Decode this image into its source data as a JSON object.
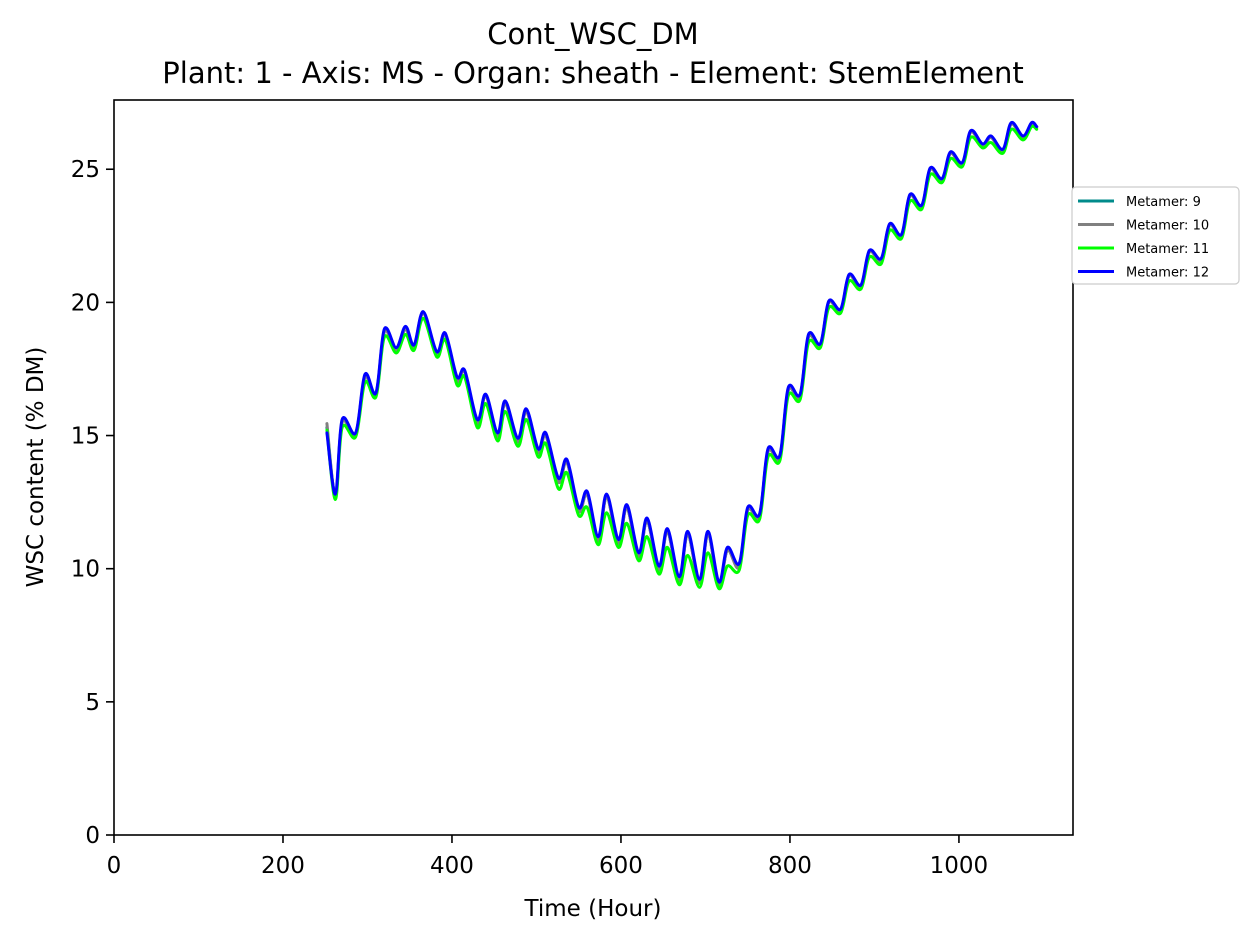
{
  "chart_data": {
    "type": "line",
    "title": "Cont_WSC_DM",
    "subtitle": "Plant: 1 - Axis: MS - Organ: sheath - Element: StemElement",
    "xlabel": "Time (Hour)",
    "ylabel": "WSC content (% DM)",
    "xlim": [
      0,
      1135
    ],
    "ylim": [
      0,
      27.6
    ],
    "xticks": [
      0,
      200,
      400,
      600,
      800,
      1000
    ],
    "yticks": [
      0,
      5,
      10,
      15,
      20,
      25
    ],
    "grid": false,
    "legend_placement": "outside-right-top",
    "series": [
      {
        "name": "Metamer: 9",
        "color": "#008b8b",
        "offset": 0.0,
        "x": [
          252,
          262,
          270,
          286,
          297,
          310,
          320,
          334,
          345,
          355,
          366,
          382,
          392,
          406,
          415,
          430,
          440,
          454,
          463,
          478,
          488,
          502,
          511,
          526,
          536,
          550,
          560,
          573,
          583,
          597,
          607,
          621,
          631,
          645,
          655,
          669,
          679,
          693,
          703,
          716,
          726,
          740,
          750,
          764,
          774,
          788,
          798,
          812,
          822,
          836,
          846,
          860,
          870,
          884,
          894,
          908,
          918,
          932,
          942,
          956,
          966,
          980,
          990,
          1004,
          1014,
          1028,
          1038,
          1052,
          1062,
          1076,
          1086,
          1092
        ],
        "y": [
          15.3,
          12.75,
          15.5,
          15.05,
          17.2,
          16.55,
          18.9,
          18.25,
          19.0,
          18.35,
          19.6,
          18.1,
          18.8,
          17.1,
          17.4,
          15.5,
          16.5,
          15.0,
          16.2,
          14.8,
          15.9,
          14.4,
          15.0,
          13.3,
          14.0,
          12.2,
          12.8,
          11.1,
          12.7,
          11.0,
          12.3,
          10.5,
          11.8,
          10.0,
          11.4,
          9.6,
          11.3,
          9.5,
          11.3,
          9.4,
          10.7,
          10.1,
          12.2,
          12.0,
          14.4,
          14.2,
          16.7,
          16.5,
          18.7,
          18.4,
          20.0,
          19.7,
          21.0,
          20.6,
          21.9,
          21.6,
          22.9,
          22.5,
          24.0,
          23.6,
          25.0,
          24.6,
          25.6,
          25.2,
          26.4,
          25.9,
          26.2,
          25.7,
          26.7,
          26.2,
          26.7,
          26.6
        ]
      },
      {
        "name": "Metamer: 10",
        "color": "#808080",
        "offset": 0.05,
        "x": [
          252,
          262,
          270,
          286,
          297,
          310,
          320,
          334,
          345,
          355,
          366,
          382,
          392,
          406,
          415,
          430,
          440,
          454,
          463,
          478,
          488,
          502,
          511,
          526,
          536,
          550,
          560,
          573,
          583,
          597,
          607,
          621,
          631,
          645,
          655,
          669,
          679,
          693,
          703,
          716,
          726,
          740,
          750,
          764,
          774,
          788,
          798,
          812,
          822,
          836,
          846,
          860,
          870,
          884,
          894,
          908,
          918,
          932,
          942,
          956,
          966,
          980,
          990,
          1004,
          1014,
          1028,
          1038,
          1052,
          1062,
          1076,
          1086,
          1092
        ],
        "y": [
          15.45,
          12.7,
          15.5,
          15.0,
          17.2,
          16.5,
          18.9,
          18.2,
          19.0,
          18.3,
          19.6,
          18.05,
          18.8,
          17.05,
          17.4,
          15.45,
          16.5,
          14.95,
          16.2,
          14.75,
          15.9,
          14.35,
          15.0,
          13.25,
          14.0,
          12.15,
          12.8,
          11.05,
          12.7,
          10.95,
          12.3,
          10.45,
          11.8,
          9.95,
          11.4,
          9.55,
          11.3,
          9.45,
          11.3,
          9.35,
          10.7,
          10.05,
          12.2,
          11.95,
          14.4,
          14.15,
          16.7,
          16.45,
          18.7,
          18.35,
          20.0,
          19.65,
          21.0,
          20.55,
          21.9,
          21.55,
          22.9,
          22.45,
          24.0,
          23.55,
          25.0,
          24.55,
          25.6,
          25.15,
          26.4,
          25.85,
          26.2,
          25.65,
          26.7,
          26.15,
          26.7,
          26.55
        ]
      },
      {
        "name": "Metamer: 11",
        "color": "#00ff00",
        "offset": -0.05,
        "x": [
          252,
          262,
          270,
          286,
          297,
          310,
          320,
          334,
          345,
          355,
          366,
          382,
          392,
          406,
          415,
          430,
          440,
          454,
          463,
          478,
          488,
          502,
          511,
          526,
          536,
          550,
          560,
          573,
          583,
          597,
          607,
          621,
          631,
          645,
          655,
          669,
          679,
          693,
          703,
          716,
          726,
          740,
          750,
          764,
          774,
          788,
          798,
          812,
          822,
          836,
          846,
          860,
          870,
          884,
          894,
          908,
          918,
          932,
          942,
          956,
          966,
          980,
          990,
          1004,
          1014,
          1028,
          1038,
          1052,
          1062,
          1076,
          1086,
          1092
        ],
        "y": [
          15.2,
          12.6,
          15.3,
          14.95,
          17.0,
          16.45,
          18.7,
          18.1,
          18.8,
          18.2,
          19.4,
          17.95,
          18.6,
          16.9,
          17.2,
          15.3,
          16.2,
          14.8,
          15.9,
          14.6,
          15.6,
          14.2,
          14.7,
          13.0,
          13.6,
          12.0,
          12.3,
          10.9,
          12.1,
          10.8,
          11.7,
          10.3,
          11.2,
          9.8,
          10.8,
          9.4,
          10.5,
          9.3,
          10.6,
          9.25,
          10.1,
          9.95,
          12.0,
          11.85,
          14.2,
          14.05,
          16.5,
          16.35,
          18.5,
          18.3,
          19.8,
          19.6,
          20.8,
          20.5,
          21.7,
          21.45,
          22.7,
          22.4,
          23.8,
          23.5,
          24.8,
          24.5,
          25.4,
          25.1,
          26.2,
          25.8,
          26.0,
          25.6,
          26.5,
          26.1,
          26.6,
          26.5
        ]
      },
      {
        "name": "Metamer: 12",
        "color": "#0000ff",
        "offset": 0.0,
        "x": [
          252,
          262,
          270,
          286,
          297,
          310,
          320,
          334,
          345,
          355,
          366,
          382,
          392,
          406,
          415,
          430,
          440,
          454,
          463,
          478,
          488,
          502,
          511,
          526,
          536,
          550,
          560,
          573,
          583,
          597,
          607,
          621,
          631,
          645,
          655,
          669,
          679,
          693,
          703,
          716,
          726,
          740,
          750,
          764,
          774,
          788,
          798,
          812,
          822,
          836,
          846,
          860,
          870,
          884,
          894,
          908,
          918,
          932,
          942,
          956,
          966,
          980,
          990,
          1004,
          1014,
          1028,
          1038,
          1052,
          1062,
          1076,
          1086,
          1092
        ],
        "y": [
          15.1,
          12.8,
          15.6,
          15.1,
          17.3,
          16.6,
          19.0,
          18.3,
          19.1,
          18.4,
          19.65,
          18.15,
          18.85,
          17.2,
          17.45,
          15.6,
          16.55,
          15.1,
          16.3,
          14.9,
          16.0,
          14.5,
          15.1,
          13.4,
          14.1,
          12.3,
          12.9,
          11.2,
          12.8,
          11.1,
          12.4,
          10.6,
          11.9,
          10.1,
          11.5,
          9.7,
          11.4,
          9.6,
          11.4,
          9.5,
          10.8,
          10.2,
          12.3,
          12.05,
          14.5,
          14.25,
          16.8,
          16.55,
          18.8,
          18.45,
          20.05,
          19.75,
          21.05,
          20.65,
          21.95,
          21.65,
          22.95,
          22.55,
          24.05,
          23.65,
          25.05,
          24.65,
          25.65,
          25.25,
          26.45,
          25.95,
          26.25,
          25.75,
          26.75,
          26.25,
          26.75,
          26.6
        ]
      }
    ]
  }
}
